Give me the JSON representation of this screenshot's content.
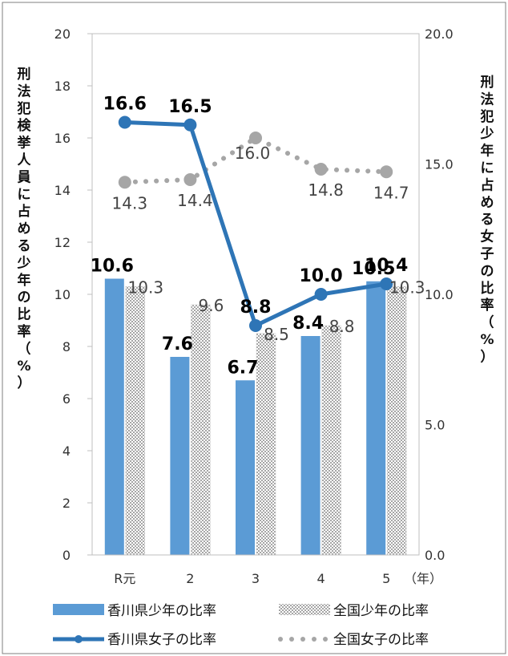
{
  "chart_data": {
    "type": "bar",
    "categories": [
      "R元",
      "2",
      "3",
      "4",
      "5"
    ],
    "x_unit": "（年）",
    "yaxis_left": {
      "label": "刑法犯検挙人員に占める少年の比率（%）",
      "min": 0,
      "max": 20,
      "ticks": [
        "0",
        "2",
        "4",
        "6",
        "8",
        "10",
        "12",
        "14",
        "16",
        "18",
        "20"
      ]
    },
    "yaxis_right": {
      "label": "刑法犯少年に占める女子の比率（%）",
      "min": 0,
      "max": 20,
      "ticks": [
        "0.0",
        "5.0",
        "10.0",
        "15.0",
        "20.0"
      ]
    },
    "grid": false,
    "legend_position": "bottom",
    "series": [
      {
        "name": "香川県少年の比率",
        "kind": "bar",
        "axis": "left",
        "color": "#5b9bd5",
        "values": [
          10.6,
          7.6,
          6.7,
          8.4,
          10.5
        ],
        "labels": [
          "10.6",
          "7.6",
          "6.7",
          "8.4",
          "10.5"
        ]
      },
      {
        "name": "全国少年の比率",
        "kind": "bar-pattern",
        "axis": "left",
        "color": "#bfbfbf",
        "values": [
          10.3,
          9.6,
          8.5,
          8.8,
          10.3
        ],
        "labels": [
          "10.3",
          "9.6",
          "8.5",
          "8.8",
          "10.3"
        ]
      },
      {
        "name": "香川県女子の比率",
        "kind": "line",
        "axis": "right",
        "color": "#2e75b6",
        "values": [
          16.6,
          16.5,
          8.8,
          10.0,
          10.4
        ],
        "labels": [
          "16.6",
          "16.5",
          "8.8",
          "10.0",
          "10.4"
        ]
      },
      {
        "name": "全国女子の比率",
        "kind": "dotted-line",
        "axis": "right",
        "color": "#a6a6a6",
        "values": [
          14.3,
          14.4,
          16.0,
          14.8,
          14.7
        ],
        "labels": [
          "14.3",
          "14.4",
          "16.0",
          "14.8",
          "14.7"
        ]
      }
    ]
  }
}
